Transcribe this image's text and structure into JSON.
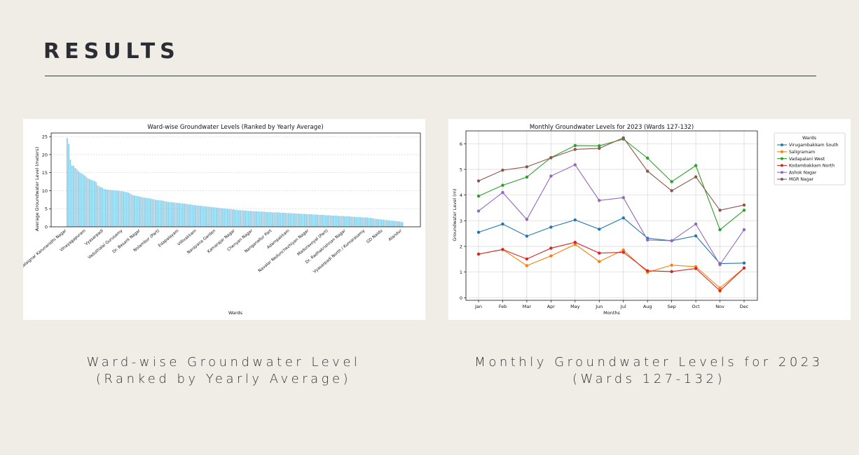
{
  "slide": {
    "title": "RESULTS",
    "caption_left": "Ward-wise Groundwater Level (Ranked by Yearly Average)",
    "caption_right": "Monthly Groundwater Levels for 2023 (Wards 127-132)"
  },
  "colors": {
    "background": "#efede6",
    "bar": "#87ceeb"
  },
  "chart_data": [
    {
      "type": "bar",
      "title": "Ward-wise Groundwater Levels (Ranked by Yearly Average)",
      "xlabel": "Wards",
      "ylabel": "Average Groundwater Level (meters)",
      "ylim": [
        0,
        26
      ],
      "yticks": [
        0,
        5,
        10,
        15,
        20,
        25
      ],
      "grid": "y",
      "bar_color": "#87ceeb",
      "visible_category_labels": [
        "Kalaignar Karunanidhi Nagar",
        "Vinayagapuram",
        "Vyasarpadi",
        "Vaduthalai Gurusamy",
        "Dr. Besant Nagar",
        "Nolambur (Part)",
        "Edapalayam",
        "Villivakkam",
        "Narayana Garden",
        "Kamarajar Nagar",
        "Chenyan Nagar",
        "Nanganallur Part",
        "Adampakkam",
        "Navalar Nedunchezhiyan Nagar",
        "Maduravoyal (Part)",
        "Dr. Radhakrishnan Nagar",
        "Vyasarpadi North / Kumarasamy",
        "GD Naidu",
        "Alandur"
      ],
      "values": [
        24.6,
        23.0,
        18.6,
        17.0,
        16.9,
        16.3,
        16.0,
        15.4,
        15.0,
        14.8,
        14.5,
        14.2,
        13.8,
        13.4,
        13.2,
        13.0,
        12.8,
        12.7,
        12.4,
        11.5,
        11.2,
        11.0,
        10.8,
        10.5,
        10.4,
        10.3,
        10.3,
        10.2,
        10.2,
        10.1,
        10.1,
        10.0,
        10.0,
        9.9,
        9.9,
        9.8,
        9.7,
        9.6,
        9.5,
        9.3,
        9.0,
        8.8,
        8.7,
        8.6,
        8.5,
        8.4,
        8.3,
        8.2,
        8.1,
        8.0,
        8.0,
        7.9,
        7.8,
        7.7,
        7.6,
        7.5,
        7.4,
        7.4,
        7.3,
        7.3,
        7.2,
        7.1,
        7.0,
        6.9,
        6.9,
        6.8,
        6.8,
        6.7,
        6.7,
        6.6,
        6.6,
        6.5,
        6.5,
        6.4,
        6.4,
        6.3,
        6.2,
        6.2,
        6.1,
        6.0,
        6.0,
        5.9,
        5.9,
        5.8,
        5.8,
        5.7,
        5.7,
        5.6,
        5.6,
        5.5,
        5.5,
        5.4,
        5.4,
        5.3,
        5.3,
        5.2,
        5.2,
        5.1,
        5.1,
        5.0,
        5.0,
        4.9,
        4.9,
        4.8,
        4.8,
        4.7,
        4.7,
        4.6,
        4.6,
        4.6,
        4.5,
        4.5,
        4.5,
        4.4,
        4.4,
        4.4,
        4.3,
        4.3,
        4.3,
        4.3,
        4.2,
        4.2,
        4.2,
        4.2,
        4.1,
        4.1,
        4.1,
        4.1,
        4.0,
        4.0,
        4.0,
        4.0,
        4.0,
        3.9,
        3.9,
        3.9,
        3.9,
        3.8,
        3.8,
        3.8,
        3.8,
        3.7,
        3.7,
        3.7,
        3.7,
        3.6,
        3.6,
        3.6,
        3.6,
        3.5,
        3.5,
        3.5,
        3.5,
        3.4,
        3.4,
        3.4,
        3.4,
        3.3,
        3.3,
        3.3,
        3.3,
        3.2,
        3.2,
        3.2,
        3.2,
        3.1,
        3.1,
        3.1,
        3.1,
        3.0,
        3.0,
        3.0,
        3.0,
        2.9,
        2.9,
        2.9,
        2.9,
        2.8,
        2.8,
        2.8,
        2.7,
        2.7,
        2.7,
        2.7,
        2.6,
        2.6,
        2.6,
        2.6,
        2.5,
        2.5,
        2.4,
        2.3,
        2.2,
        2.2,
        2.1,
        2.1,
        2.0,
        2.0,
        1.9,
        1.9,
        1.8,
        1.8,
        1.7,
        1.7,
        1.6,
        1.6,
        1.5,
        1.5,
        1.4,
        1.3
      ]
    },
    {
      "type": "line",
      "title": "Monthly Groundwater Levels for 2023 (Wards 127-132)",
      "xlabel": "Months",
      "ylabel": "Groundwater Level (m)",
      "ylim": [
        -0.1,
        6.5
      ],
      "yticks": [
        0,
        1,
        2,
        3,
        4,
        5,
        6
      ],
      "grid": true,
      "legend": {
        "title": "Wards",
        "placement": "outside-right"
      },
      "categories": [
        "Jan",
        "Feb",
        "Mar",
        "Apr",
        "May",
        "Jun",
        "Jul",
        "Aug",
        "Sep",
        "Oct",
        "Nov",
        "Dec"
      ],
      "series": [
        {
          "name": "Virugambakkam South",
          "color": "#1f77b4",
          "values": [
            2.55,
            2.87,
            2.4,
            2.75,
            3.03,
            2.67,
            3.11,
            2.32,
            2.22,
            2.41,
            1.33,
            1.35
          ]
        },
        {
          "name": "Saligramam",
          "color": "#ff7f0e",
          "values": [
            1.7,
            1.88,
            1.25,
            1.63,
            2.08,
            1.41,
            1.86,
            0.99,
            1.27,
            1.21,
            0.38,
            1.16
          ]
        },
        {
          "name": "Vadapalani West",
          "color": "#2ca02c",
          "values": [
            3.96,
            4.38,
            4.7,
            5.46,
            5.93,
            5.92,
            6.18,
            5.44,
            4.52,
            5.15,
            2.65,
            3.41
          ]
        },
        {
          "name": "Kodambakkam North",
          "color": "#d62728",
          "values": [
            1.7,
            1.88,
            1.51,
            1.93,
            2.16,
            1.74,
            1.77,
            1.05,
            1.02,
            1.14,
            0.27,
            1.16
          ]
        },
        {
          "name": "Ashok Nagar",
          "color": "#9467bd",
          "values": [
            3.38,
            4.1,
            3.05,
            4.74,
            5.18,
            3.79,
            3.9,
            2.25,
            2.22,
            2.87,
            1.29,
            2.65
          ]
        },
        {
          "name": "MGR Nagar",
          "color": "#8c564b",
          "values": [
            4.55,
            4.97,
            5.1,
            5.45,
            5.78,
            5.82,
            6.23,
            4.93,
            4.17,
            4.71,
            3.41,
            3.61
          ]
        }
      ]
    }
  ]
}
